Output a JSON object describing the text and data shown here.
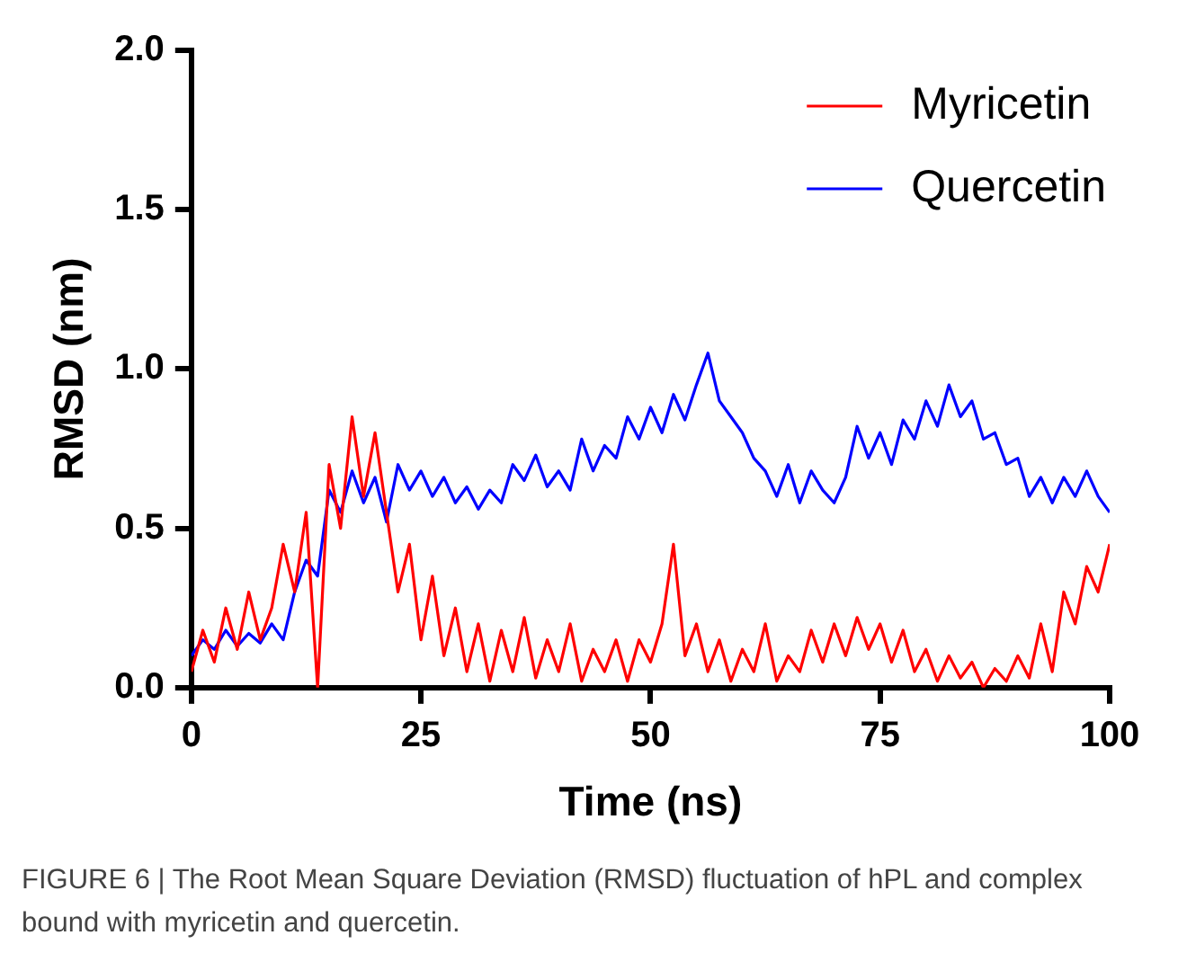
{
  "chart_data": {
    "type": "line",
    "xlabel": "Time (ns)",
    "ylabel": "RMSD (nm)",
    "x": [
      0,
      1.25,
      2.5,
      3.75,
      5,
      6.25,
      7.5,
      8.75,
      10,
      11.25,
      12.5,
      13.75,
      15,
      16.25,
      17.5,
      18.75,
      20,
      21.25,
      22.5,
      23.75,
      25,
      26.25,
      27.5,
      28.75,
      30,
      31.25,
      32.5,
      33.75,
      35,
      36.25,
      37.5,
      38.75,
      40,
      41.25,
      42.5,
      43.75,
      45,
      46.25,
      47.5,
      48.75,
      50,
      51.25,
      52.5,
      53.75,
      55,
      56.25,
      57.5,
      58.75,
      60,
      61.25,
      62.5,
      63.75,
      65,
      66.25,
      67.5,
      68.75,
      70,
      71.25,
      72.5,
      73.75,
      75,
      76.25,
      77.5,
      78.75,
      80,
      81.25,
      82.5,
      83.75,
      85,
      86.25,
      87.5,
      88.75,
      90,
      91.25,
      92.5,
      93.75,
      95,
      96.25,
      97.5,
      98.75,
      100
    ],
    "series": [
      {
        "name": "Myricetin",
        "color": "#ff0000",
        "values": [
          0.05,
          0.18,
          0.08,
          0.25,
          0.12,
          0.3,
          0.15,
          0.25,
          0.45,
          0.3,
          0.55,
          0.0,
          0.7,
          0.5,
          0.85,
          0.6,
          0.8,
          0.55,
          0.3,
          0.45,
          0.15,
          0.35,
          0.1,
          0.25,
          0.05,
          0.2,
          0.02,
          0.18,
          0.05,
          0.22,
          0.03,
          0.15,
          0.05,
          0.2,
          0.02,
          0.12,
          0.05,
          0.15,
          0.02,
          0.15,
          0.08,
          0.2,
          0.45,
          0.1,
          0.2,
          0.05,
          0.15,
          0.02,
          0.12,
          0.05,
          0.2,
          0.02,
          0.1,
          0.05,
          0.18,
          0.08,
          0.2,
          0.1,
          0.22,
          0.12,
          0.2,
          0.08,
          0.18,
          0.05,
          0.12,
          0.02,
          0.1,
          0.03,
          0.08,
          0.0,
          0.06,
          0.02,
          0.1,
          0.03,
          0.2,
          0.05,
          0.3,
          0.2,
          0.38,
          0.3,
          0.45
        ]
      },
      {
        "name": "Quercetin",
        "color": "#0000ff",
        "values": [
          0.1,
          0.15,
          0.12,
          0.18,
          0.13,
          0.17,
          0.14,
          0.2,
          0.15,
          0.3,
          0.4,
          0.35,
          0.62,
          0.55,
          0.68,
          0.58,
          0.66,
          0.52,
          0.7,
          0.62,
          0.68,
          0.6,
          0.66,
          0.58,
          0.63,
          0.56,
          0.62,
          0.58,
          0.7,
          0.65,
          0.73,
          0.63,
          0.68,
          0.62,
          0.78,
          0.68,
          0.76,
          0.72,
          0.85,
          0.78,
          0.88,
          0.8,
          0.92,
          0.84,
          0.95,
          1.05,
          0.9,
          0.85,
          0.8,
          0.72,
          0.68,
          0.6,
          0.7,
          0.58,
          0.68,
          0.62,
          0.58,
          0.66,
          0.82,
          0.72,
          0.8,
          0.7,
          0.84,
          0.78,
          0.9,
          0.82,
          0.95,
          0.85,
          0.9,
          0.78,
          0.8,
          0.7,
          0.72,
          0.6,
          0.66,
          0.58,
          0.66,
          0.6,
          0.68,
          0.6,
          0.55
        ]
      }
    ],
    "xlim": [
      0,
      100
    ],
    "xticks": [
      0,
      25,
      50,
      75,
      100
    ],
    "ylim": [
      0,
      2
    ],
    "yticks": [
      {
        "value": 0,
        "label": "0.0"
      },
      0.5,
      {
        "value": 1,
        "label": "1.0"
      },
      1.5,
      {
        "value": 2,
        "label": "2.0"
      }
    ],
    "grid": false,
    "legend": "top right",
    "marker": "none",
    "line_style": "solid",
    "annotations": [
      "FIGURE 6 | The Root Mean Square Deviation (RMSD) fluctuation of hPL and complex bound with myricetin and quercetin."
    ]
  }
}
